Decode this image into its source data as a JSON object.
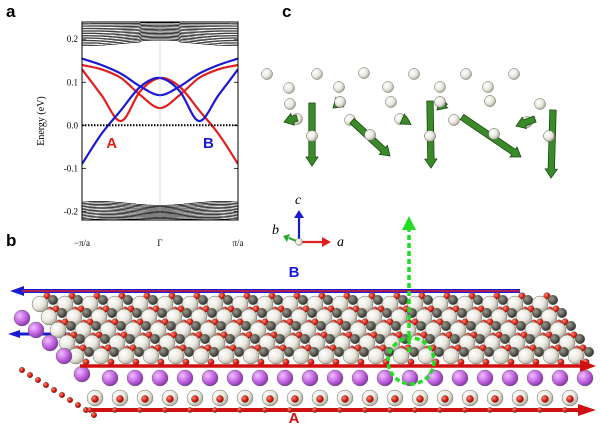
{
  "panels": {
    "a": "a",
    "b": "b",
    "c": "c"
  },
  "chart_data": {
    "type": "line",
    "title": "",
    "ylabel": "Energy (eV)",
    "ylim": [
      -0.22,
      0.24
    ],
    "x_ticks": [
      "−π/a",
      "Γ",
      "π/a"
    ],
    "y_ticks": [
      "0.2",
      "0.1",
      "0.0",
      "-0.1",
      "-0.2"
    ],
    "y_tick_values": [
      0.2,
      0.1,
      0.0,
      -0.1,
      -0.2
    ],
    "fermi_level": 0.0,
    "annotations": [
      {
        "text": "A",
        "color": "#e02020",
        "x": -0.62,
        "y": -0.02
      },
      {
        "text": "B",
        "color": "#1a1ad0",
        "x": 0.62,
        "y": -0.02
      }
    ],
    "series": [
      {
        "color": "#e02020",
        "x": [
          -1,
          -0.75,
          -0.5,
          -0.25,
          0,
          0.25,
          0.5,
          0.75,
          1
        ],
        "values": [
          0.13,
          0.07,
          0.01,
          0.08,
          0.11,
          0.09,
          0.035,
          -0.02,
          -0.09
        ]
      },
      {
        "color": "#e02020",
        "x": [
          -1,
          -0.75,
          -0.5,
          -0.25,
          0,
          0.25,
          0.5,
          0.75,
          1
        ],
        "values": [
          0.14,
          0.13,
          0.11,
          0.07,
          0.04,
          0.07,
          0.11,
          0.13,
          0.14
        ]
      },
      {
        "color": "#1a1ad0",
        "x": [
          -1,
          -0.75,
          -0.5,
          -0.25,
          0,
          0.25,
          0.5,
          0.75,
          1
        ],
        "values": [
          -0.09,
          -0.02,
          0.035,
          0.09,
          0.11,
          0.08,
          0.01,
          0.07,
          0.13
        ]
      },
      {
        "color": "#1a1ad0",
        "x": [
          -1,
          -0.75,
          -0.5,
          -0.25,
          0,
          0.25,
          0.5,
          0.75,
          1
        ],
        "values": [
          0.155,
          0.14,
          0.12,
          0.09,
          0.07,
          0.09,
          0.12,
          0.14,
          0.155
        ]
      }
    ]
  },
  "panel_b": {
    "edge_top_label": "B",
    "edge_bottom_label": "A",
    "top_color": "#1a1ad0",
    "bottom_color": "#d01010"
  },
  "panel_c": {
    "axes": {
      "c": "c",
      "b": "b",
      "a": "a"
    }
  },
  "colors": {
    "red": "#e02020",
    "blue": "#1a1ad0",
    "green": "#2a7a1c",
    "highlight_green": "#22dd22",
    "purple": "#c060e0"
  }
}
